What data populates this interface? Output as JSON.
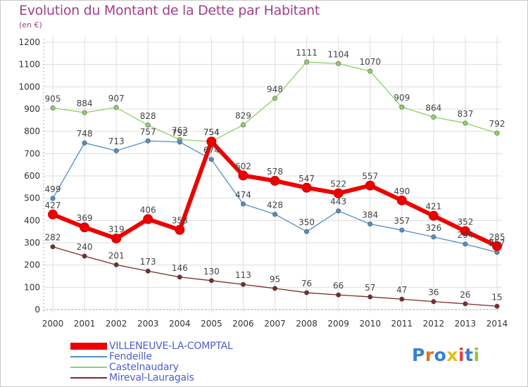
{
  "header": {
    "title": "Evolution du Montant de la Dette par Habitant",
    "subtitle": "(en €)"
  },
  "logo": {
    "text": "Proxiti"
  },
  "chart_data": {
    "type": "line",
    "title": "Evolution du Montant de la Dette par Habitant",
    "ylabel": "(en €)",
    "xlabel": "",
    "x": [
      "2000",
      "2001",
      "2002",
      "2003",
      "2004",
      "2005",
      "2006",
      "2007",
      "2008",
      "2009",
      "2010",
      "2011",
      "2012",
      "2013",
      "2014"
    ],
    "ylim": [
      0,
      1200
    ],
    "yticks": [
      0,
      100,
      200,
      300,
      400,
      500,
      600,
      700,
      800,
      900,
      1000,
      1100,
      1200
    ],
    "grid": true,
    "legend_position": "bottom-left",
    "series": [
      {
        "name": "VILLENEUVE-LA-COMPTAL",
        "color": "#ee0000",
        "values": [
          427,
          369,
          319,
          406,
          358,
          754,
          602,
          578,
          547,
          522,
          557,
          490,
          421,
          352,
          285
        ]
      },
      {
        "name": "Fendeille",
        "color": "#4f8fc7",
        "values": [
          499,
          748,
          713,
          757,
          752,
          674,
          474,
          428,
          350,
          443,
          384,
          357,
          326,
          294,
          257
        ]
      },
      {
        "name": "Castelnaudary",
        "color": "#8fd06a",
        "values": [
          905,
          884,
          907,
          828,
          763,
          754,
          829,
          948,
          1111,
          1104,
          1070,
          909,
          864,
          837,
          792
        ]
      },
      {
        "name": "Mireval-Lauragais",
        "color": "#7a2a2a",
        "values": [
          282,
          240,
          201,
          173,
          146,
          130,
          113,
          95,
          76,
          66,
          57,
          47,
          36,
          26,
          15
        ]
      }
    ]
  }
}
